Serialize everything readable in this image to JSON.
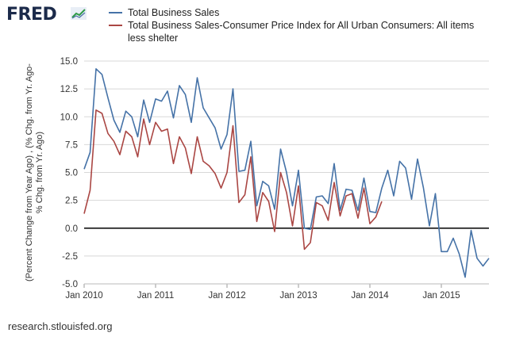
{
  "brand": {
    "name": "FRED"
  },
  "footer": {
    "source": "research.stlouisfed.org"
  },
  "chart_data": {
    "type": "line",
    "title": "",
    "xlabel": "",
    "ylabel": "(Percent Change from Year Ago) , (% Chg. from Yr. Ago-% Chg. from Yr. Ago)",
    "ylim": [
      -5.0,
      15.0
    ],
    "yticks": [
      "15.0",
      "12.5",
      "10.0",
      "7.5",
      "5.0",
      "2.5",
      "0.0",
      "-2.5",
      "-5.0"
    ],
    "ytick_values": [
      15,
      12.5,
      10,
      7.5,
      5,
      2.5,
      0,
      -2.5,
      -5
    ],
    "xticks": [
      {
        "label": "Jan 2010",
        "index": 0
      },
      {
        "label": "Jan 2011",
        "index": 12
      },
      {
        "label": "Jan 2012",
        "index": 24
      },
      {
        "label": "Jan 2013",
        "index": 36
      },
      {
        "label": "Jan 2014",
        "index": 48
      },
      {
        "label": "Jan 2015",
        "index": 60
      }
    ],
    "x_index_range": [
      0,
      68
    ],
    "start": "Jan 2010",
    "frequency": "monthly",
    "zero_line": true,
    "series": [
      {
        "name": "Total Business Sales",
        "color": "#4572a7",
        "values": [
          5.3,
          6.8,
          14.3,
          13.8,
          11.7,
          9.7,
          8.6,
          10.5,
          10.0,
          8.2,
          11.5,
          9.5,
          11.6,
          11.4,
          12.3,
          9.9,
          12.8,
          12.0,
          9.5,
          13.5,
          10.8,
          9.9,
          9.0,
          7.1,
          8.4,
          12.5,
          5.1,
          5.2,
          7.8,
          2.0,
          4.2,
          3.8,
          1.7,
          7.1,
          5.0,
          2.0,
          5.2,
          0.0,
          -0.1,
          2.8,
          2.9,
          2.2,
          5.8,
          1.6,
          3.5,
          3.4,
          1.6,
          4.5,
          1.5,
          1.4,
          3.6,
          5.2,
          2.9,
          6.0,
          5.4,
          2.6,
          6.2,
          3.6,
          0.2,
          3.1,
          -2.1,
          -2.1,
          -0.9,
          -2.3,
          -4.4,
          -0.2,
          -2.7,
          -3.4,
          -2.7
        ]
      },
      {
        "name": "Total Business Sales-Consumer Price Index for All Urban Consumers: All items less shelter",
        "color": "#aa4643",
        "values": [
          1.3,
          3.4,
          10.6,
          10.3,
          8.5,
          7.8,
          6.6,
          8.7,
          8.2,
          6.4,
          9.8,
          7.5,
          9.5,
          8.7,
          8.9,
          5.8,
          8.2,
          7.2,
          4.9,
          8.2,
          6.0,
          5.6,
          4.9,
          3.6,
          5.0,
          9.2,
          2.3,
          3.0,
          6.4,
          0.6,
          3.2,
          2.4,
          -0.3,
          5.0,
          3.2,
          0.2,
          3.8,
          -1.9,
          -1.3,
          2.3,
          2.0,
          0.7,
          4.1,
          1.1,
          2.9,
          3.1,
          0.9,
          3.6,
          0.4,
          1.0,
          2.4
        ]
      }
    ]
  }
}
